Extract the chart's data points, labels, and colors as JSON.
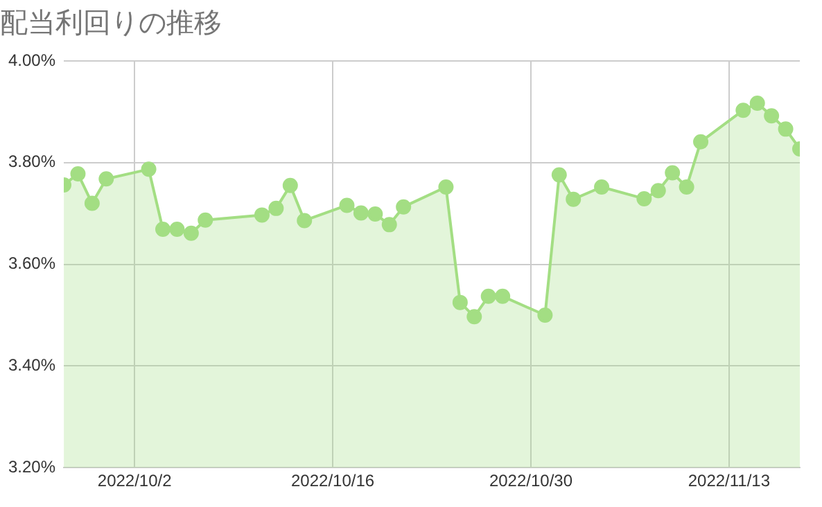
{
  "chart_data": {
    "type": "area",
    "title": "配当利回りの推移",
    "x": [
      "2022-09-27",
      "2022-09-28",
      "2022-09-29",
      "2022-09-30",
      "2022-10-03",
      "2022-10-04",
      "2022-10-05",
      "2022-10-06",
      "2022-10-07",
      "2022-10-11",
      "2022-10-12",
      "2022-10-13",
      "2022-10-14",
      "2022-10-17",
      "2022-10-18",
      "2022-10-19",
      "2022-10-20",
      "2022-10-21",
      "2022-10-24",
      "2022-10-25",
      "2022-10-26",
      "2022-10-27",
      "2022-10-28",
      "2022-10-31",
      "2022-11-01",
      "2022-11-02",
      "2022-11-04",
      "2022-11-07",
      "2022-11-08",
      "2022-11-09",
      "2022-11-10",
      "2022-11-11",
      "2022-11-14",
      "2022-11-15",
      "2022-11-16",
      "2022-11-17",
      "2022-11-18"
    ],
    "series": [
      {
        "color": "#a3de83",
        "values": [
          3.756,
          3.778,
          3.72,
          3.768,
          3.787,
          3.669,
          3.669,
          3.661,
          3.687,
          3.697,
          3.71,
          3.755,
          3.686,
          3.716,
          3.701,
          3.699,
          3.678,
          3.713,
          3.752,
          3.525,
          3.497,
          3.537,
          3.537,
          3.5,
          3.776,
          3.728,
          3.752,
          3.729,
          3.745,
          3.78,
          3.752,
          3.841,
          3.903,
          3.917,
          3.892,
          3.866,
          3.827
        ]
      }
    ],
    "xlim": [
      "2022-09-27",
      "2022-11-18"
    ],
    "xticks": [
      {
        "value": "2022-10-02",
        "label": "2022/10/2"
      },
      {
        "value": "2022-10-16",
        "label": "2022/10/16"
      },
      {
        "value": "2022-10-30",
        "label": "2022/10/30"
      },
      {
        "value": "2022-11-13",
        "label": "2022/11/13"
      }
    ],
    "ylim": [
      3.2,
      4.0
    ],
    "yticks": [
      {
        "value": 3.2,
        "label": "3.20%"
      },
      {
        "value": 3.4,
        "label": "3.40%"
      },
      {
        "value": 3.6,
        "label": "3.60%"
      },
      {
        "value": 3.8,
        "label": "3.80%"
      },
      {
        "value": 4.0,
        "label": "4.00%"
      }
    ],
    "grid": true,
    "marker": "circle",
    "line_style": "solid"
  }
}
